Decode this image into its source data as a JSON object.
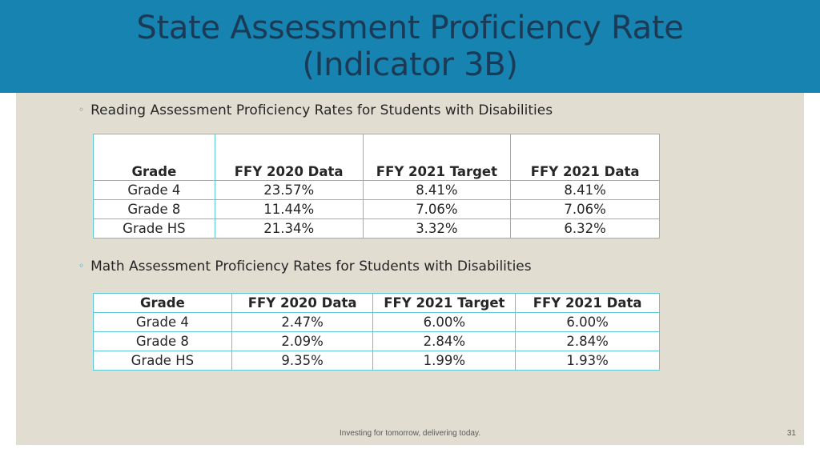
{
  "slide": {
    "title_line1": "State Assessment Proficiency Rate",
    "title_line2": "(Indicator 3B)",
    "footer": "Investing for tomorrow, delivering today.",
    "page_number": "31"
  },
  "reading": {
    "bullet": "Reading Assessment Proficiency Rates for Students with Disabilities",
    "headers": [
      "Grade",
      "FFY 2020 Data",
      "FFY 2021 Target",
      "FFY 2021 Data"
    ],
    "rows": [
      [
        "Grade 4",
        "23.57%",
        "8.41%",
        "8.41%"
      ],
      [
        "Grade 8",
        "11.44%",
        "7.06%",
        "7.06%"
      ],
      [
        "Grade HS",
        "21.34%",
        "3.32%",
        "6.32%"
      ]
    ]
  },
  "math": {
    "bullet": "Math Assessment Proficiency Rates for Students with Disabilities",
    "headers": [
      "Grade",
      "FFY 2020 Data",
      "FFY 2021 Target",
      "FFY 2021 Data"
    ],
    "rows": [
      [
        "Grade 4",
        "2.47%",
        "6.00%",
        "6.00%"
      ],
      [
        "Grade 8",
        "2.09%",
        "2.84%",
        "2.84%"
      ],
      [
        "Grade HS",
        "9.35%",
        "1.99%",
        "1.93%"
      ]
    ]
  },
  "colors": {
    "header_band": "#1683b0",
    "title_text": "#1b3a55",
    "panel": "#e2ddd1",
    "table_border": "#5fc8d6"
  }
}
